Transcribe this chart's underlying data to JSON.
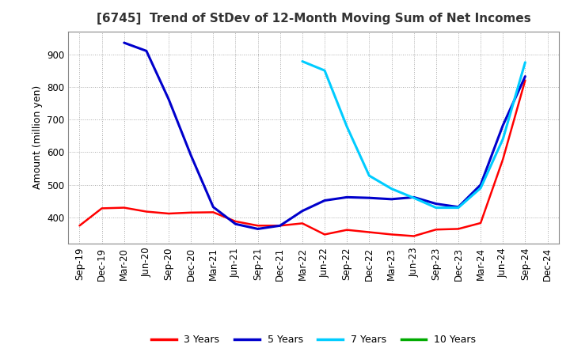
{
  "title": "[6745]  Trend of StDev of 12-Month Moving Sum of Net Incomes",
  "ylabel": "Amount (million yen)",
  "background_color": "#ffffff",
  "grid_color": "#aaaaaa",
  "ylim": [
    320,
    970
  ],
  "yticks": [
    400,
    500,
    600,
    700,
    800,
    900
  ],
  "x_labels": [
    "Sep-19",
    "Dec-19",
    "Mar-20",
    "Jun-20",
    "Sep-20",
    "Dec-20",
    "Mar-21",
    "Jun-21",
    "Sep-21",
    "Dec-21",
    "Mar-22",
    "Jun-22",
    "Sep-22",
    "Dec-22",
    "Mar-23",
    "Jun-23",
    "Sep-23",
    "Dec-23",
    "Mar-24",
    "Jun-24",
    "Sep-24",
    "Dec-24"
  ],
  "series": {
    "3 Years": {
      "color": "#ff0000",
      "linewidth": 1.8,
      "values": [
        375,
        428,
        430,
        418,
        412,
        415,
        416,
        388,
        375,
        375,
        382,
        348,
        362,
        355,
        348,
        343,
        363,
        365,
        383,
        578,
        820,
        null
      ]
    },
    "5 Years": {
      "color": "#0000cc",
      "linewidth": 2.2,
      "values": [
        null,
        null,
        935,
        910,
        762,
        590,
        432,
        380,
        365,
        375,
        420,
        452,
        462,
        460,
        456,
        462,
        442,
        432,
        500,
        682,
        832,
        null
      ]
    },
    "7 Years": {
      "color": "#00ccff",
      "linewidth": 2.2,
      "values": [
        null,
        null,
        null,
        null,
        null,
        null,
        null,
        null,
        null,
        null,
        878,
        850,
        678,
        528,
        488,
        460,
        430,
        430,
        490,
        640,
        875,
        null
      ]
    },
    "10 Years": {
      "color": "#00aa00",
      "linewidth": 1.8,
      "values": [
        null,
        null,
        null,
        null,
        null,
        null,
        null,
        null,
        null,
        null,
        null,
        null,
        null,
        null,
        null,
        null,
        null,
        null,
        null,
        null,
        null,
        null
      ]
    }
  },
  "legend_labels": [
    "3 Years",
    "5 Years",
    "7 Years",
    "10 Years"
  ],
  "legend_colors": [
    "#ff0000",
    "#0000cc",
    "#00ccff",
    "#00aa00"
  ],
  "title_fontsize": 11,
  "ylabel_fontsize": 9,
  "tick_fontsize": 8.5
}
